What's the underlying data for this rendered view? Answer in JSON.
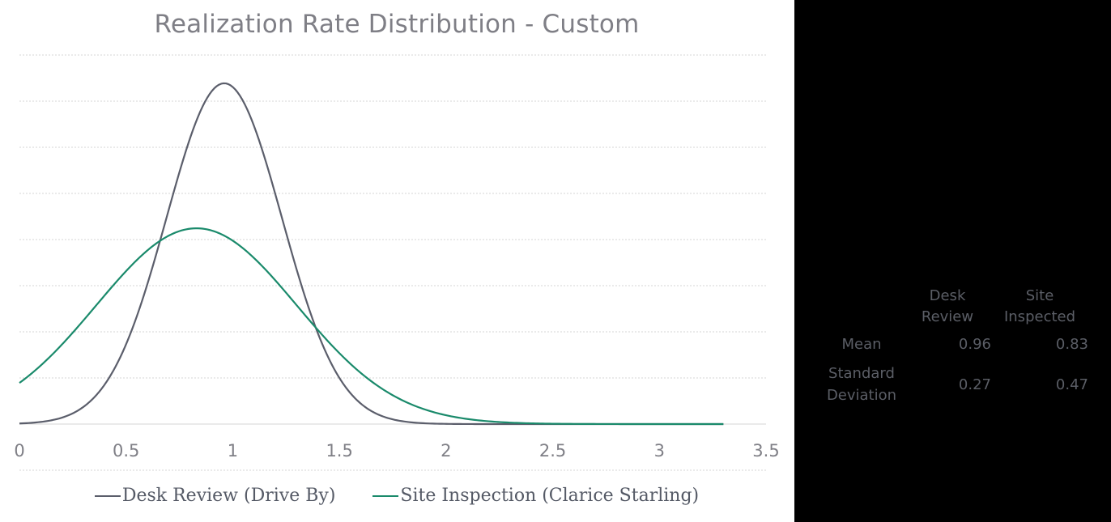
{
  "chart_data": {
    "type": "line",
    "title": "Realization Rate Distribution - Custom",
    "xlabel": "",
    "ylabel": "",
    "xlim": [
      0,
      3.5
    ],
    "ylim": [
      0,
      1.6
    ],
    "x_ticks": [
      "0",
      "0.5",
      "1",
      "1.5",
      "2",
      "2.5",
      "3",
      "3.5"
    ],
    "grid": "horizontal",
    "legend_position": "bottom",
    "series": [
      {
        "name": "Desk Review (Drive By)",
        "distribution": "normal",
        "mean": 0.96,
        "sd": 0.27,
        "x_range": [
          0,
          3.3
        ],
        "color": "#5b5e6b"
      },
      {
        "name": "Site Inspection (Clarice Starling)",
        "distribution": "normal",
        "mean": 0.83,
        "sd": 0.47,
        "x_range": [
          0,
          3.3
        ],
        "color": "#1a8a6b"
      }
    ]
  },
  "stats": {
    "headers": [
      [
        "Desk",
        "Review"
      ],
      [
        "Site",
        "Inspected"
      ]
    ],
    "rows": [
      {
        "label": [
          "Mean"
        ],
        "values": [
          "0.96",
          "0.83"
        ]
      },
      {
        "label": [
          "Standard",
          "Deviation"
        ],
        "values": [
          "0.27",
          "0.47"
        ]
      }
    ]
  }
}
